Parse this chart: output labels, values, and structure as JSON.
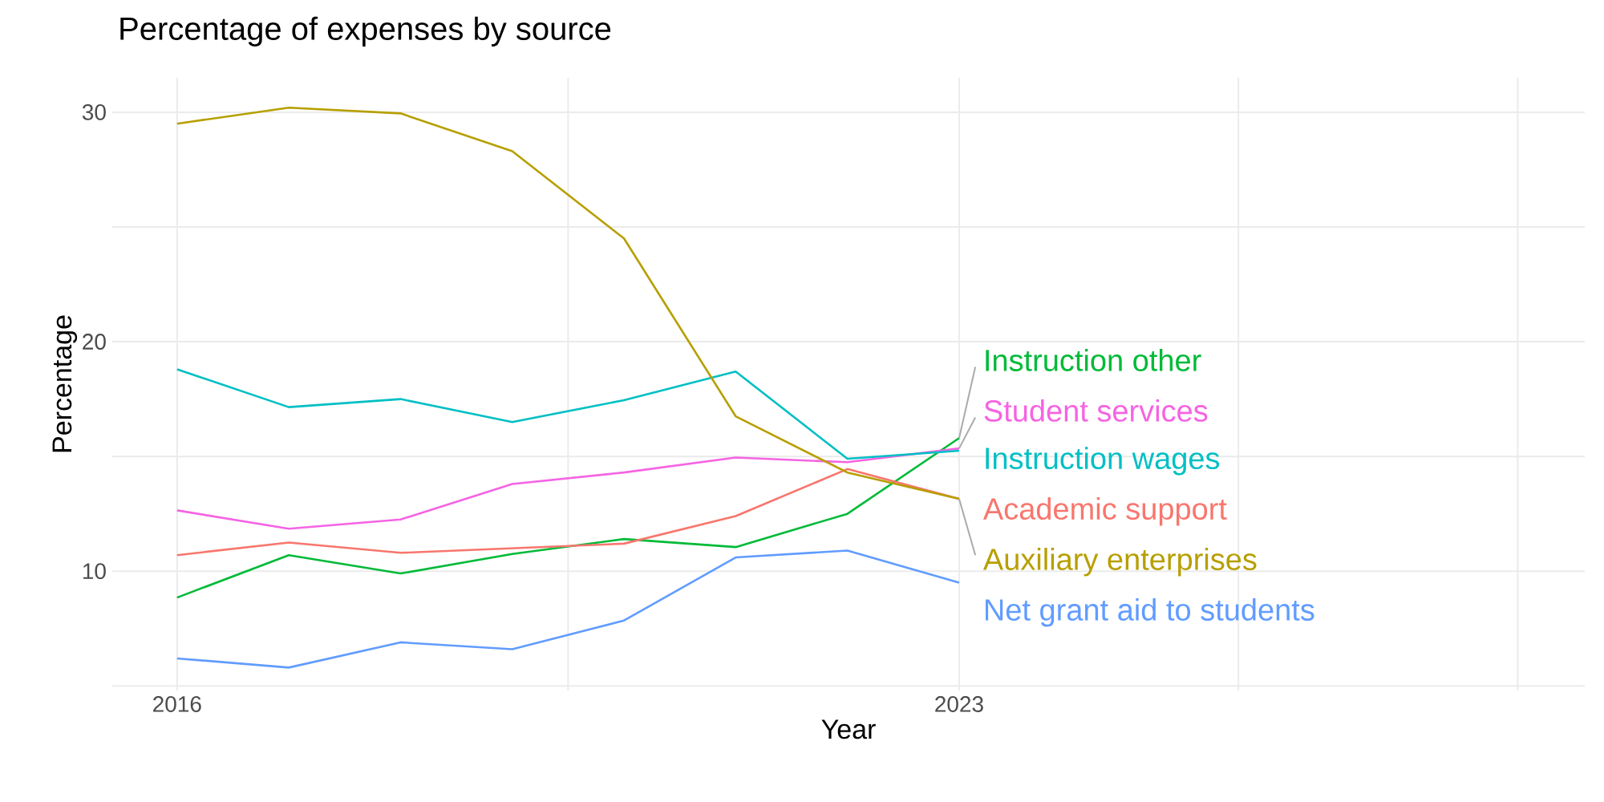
{
  "chart_data": {
    "type": "line",
    "title": "Percentage of expenses by source",
    "xlabel": "Year",
    "ylabel": "Percentage",
    "x": [
      2016,
      2017,
      2018,
      2019,
      2020,
      2021,
      2022,
      2023
    ],
    "series": [
      {
        "name": "Instruction other",
        "color": "#00ba38",
        "values": [
          8.85,
          10.7,
          9.9,
          10.75,
          11.4,
          11.05,
          12.5,
          15.8
        ]
      },
      {
        "name": "Student services",
        "color": "#f564e3",
        "values": [
          12.65,
          11.85,
          12.25,
          13.8,
          14.3,
          14.95,
          14.75,
          15.35
        ]
      },
      {
        "name": "Instruction wages",
        "color": "#00bfc4",
        "values": [
          18.8,
          17.15,
          17.5,
          16.5,
          17.45,
          18.7,
          14.9,
          15.25
        ]
      },
      {
        "name": "Academic support",
        "color": "#f8766d",
        "values": [
          10.7,
          11.25,
          10.8,
          11.0,
          11.2,
          12.4,
          14.45,
          13.15
        ]
      },
      {
        "name": "Auxiliary enterprises",
        "color": "#b79f00",
        "values": [
          29.5,
          30.2,
          29.95,
          28.3,
          24.5,
          16.75,
          14.3,
          13.15
        ]
      },
      {
        "name": "Net grant aid to students",
        "color": "#619cff",
        "values": [
          6.2,
          5.8,
          6.9,
          6.6,
          7.85,
          10.6,
          10.9,
          9.5
        ]
      }
    ],
    "xlim": [
      2015.42,
      2028.6
    ],
    "ylim": [
      4.8,
      31.5
    ],
    "xticks": [
      2016,
      {
        "value": 2019.5,
        "label": null
      },
      2023,
      {
        "value": 2025.5,
        "label": null
      },
      {
        "value": 2028,
        "label": null
      }
    ],
    "yticks": [
      {
        "value": 5,
        "label": null
      },
      10,
      {
        "value": 15,
        "label": null
      },
      20,
      {
        "value": 25,
        "label": null
      },
      30
    ],
    "grid": true,
    "legend": false,
    "marker": "none",
    "line_style": "solid"
  }
}
